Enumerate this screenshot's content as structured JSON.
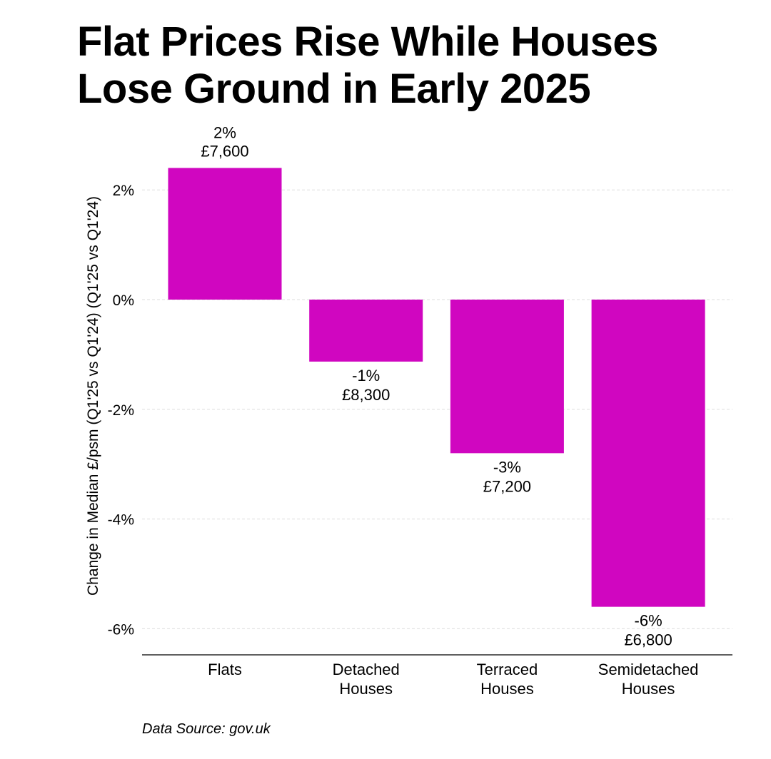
{
  "title_lines": [
    "Flat Prices Rise While Houses",
    "Lose Ground in Early 2025"
  ],
  "source": "Data Source: gov.uk",
  "bar_color": "#d006c0",
  "chart_data": {
    "type": "bar",
    "title": "Flat Prices Rise While Houses Lose Ground in Early 2025",
    "xlabel": "",
    "ylabel": "Change in Median £/psm (Q1'25 vs Q1'24) (Q1'25 vs Q1'24)",
    "categories": [
      [
        "Flats"
      ],
      [
        "Detached",
        "Houses"
      ],
      [
        "Terraced",
        "Houses"
      ],
      [
        "Semidetached",
        "Houses"
      ]
    ],
    "values": [
      2.4,
      -1.13,
      -2.8,
      -5.6
    ],
    "value_labels": [
      "2%",
      "-1%",
      "-3%",
      "-6%"
    ],
    "price_labels": [
      "£7,600",
      "£8,300",
      "£7,200",
      "£6,800"
    ],
    "ylim": [
      -6.5,
      3.0
    ],
    "yticks": [
      2,
      0,
      -2,
      -4,
      -6
    ],
    "ytick_labels": [
      "2%",
      "0%",
      "-2%",
      "-4%",
      "-6%"
    ],
    "grid": true,
    "legend": "none"
  }
}
